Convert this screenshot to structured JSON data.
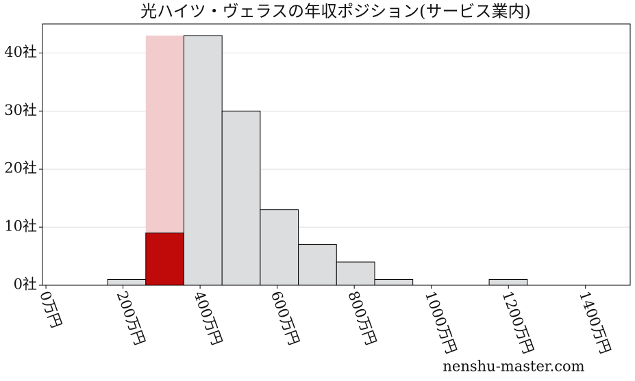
{
  "chart_data": {
    "type": "histogram",
    "title": "光ハイツ・ヴェラスの年収ポジション(サービス業内)",
    "bins": [
      160,
      259,
      358,
      457,
      556,
      655,
      754,
      853,
      952,
      1051,
      1150,
      1249
    ],
    "values": [
      1,
      9,
      43,
      30,
      13,
      7,
      4,
      1,
      0,
      0,
      1
    ],
    "color": "#dcdddf",
    "highlight_bin": 1,
    "highlight_color": "#c00a0a",
    "highlight_band_color": "#f2cccc",
    "xlim": [
      -9,
      1516
    ],
    "ylim": [
      0,
      45
    ],
    "xticks": [
      {
        "value": 0,
        "label": "0万円"
      },
      {
        "value": 200,
        "label": "200万円"
      },
      {
        "value": 400,
        "label": "400万円"
      },
      {
        "value": 600,
        "label": "600万円"
      },
      {
        "value": 800,
        "label": "800万円"
      },
      {
        "value": 1000,
        "label": "1000万円"
      },
      {
        "value": 1200,
        "label": "1200万円"
      },
      {
        "value": 1400,
        "label": "1400万円"
      }
    ],
    "yticks": [
      {
        "value": 0,
        "label": "0社"
      },
      {
        "value": 10,
        "label": "10社"
      },
      {
        "value": 20,
        "label": "20社"
      },
      {
        "value": 30,
        "label": "30社"
      },
      {
        "value": 40,
        "label": "40社"
      }
    ],
    "grid": true,
    "watermark": "nenshu-master.com"
  }
}
